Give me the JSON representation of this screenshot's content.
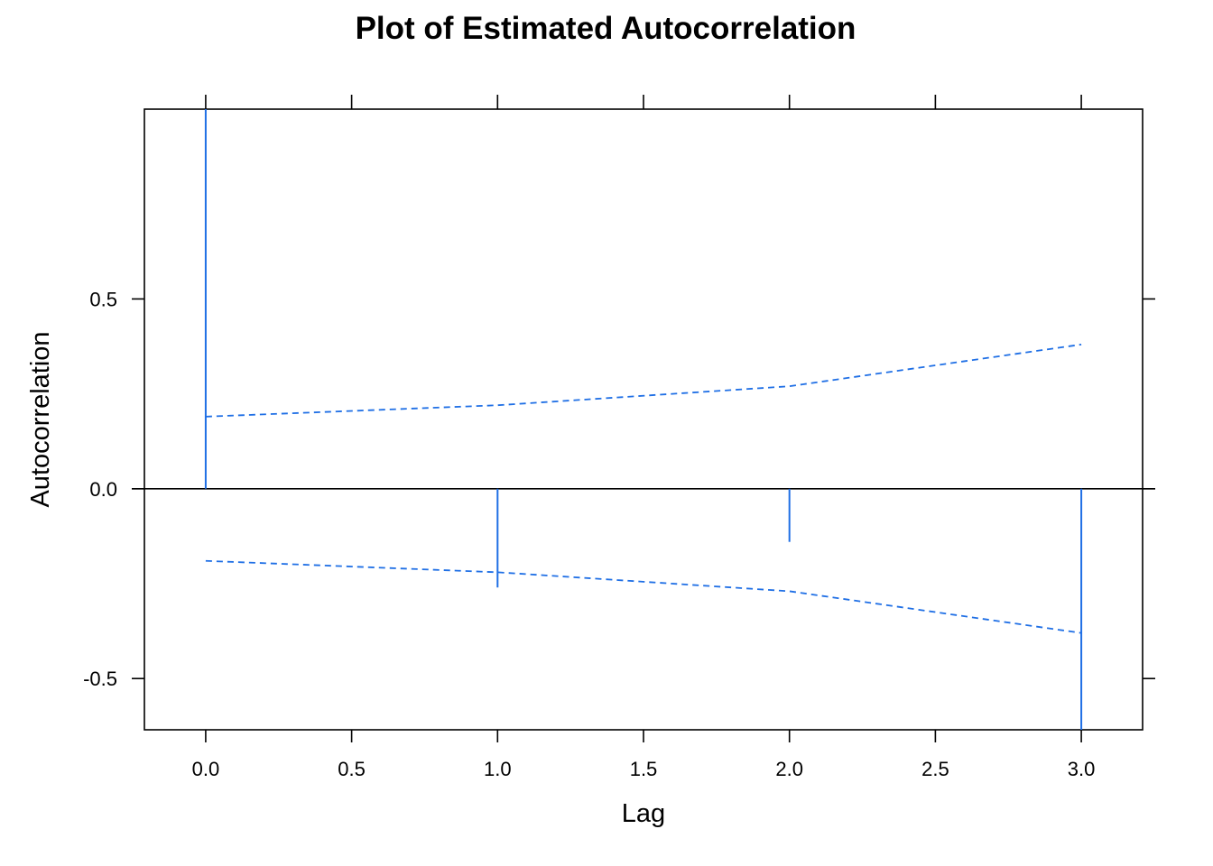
{
  "chart_data": {
    "type": "line",
    "title": "Plot of Estimated Autocorrelation",
    "xlabel": "Lag",
    "ylabel": "Autocorrelation",
    "xlim": [
      -0.21,
      3.21
    ],
    "ylim": [
      -0.635,
      1.0
    ],
    "x_ticks": [
      {
        "value": 0.0,
        "label": "0.0"
      },
      {
        "value": 0.5,
        "label": "0.5"
      },
      {
        "value": 1.0,
        "label": "1.0"
      },
      {
        "value": 1.5,
        "label": "1.5"
      },
      {
        "value": 2.0,
        "label": "2.0"
      },
      {
        "value": 2.5,
        "label": "2.5"
      },
      {
        "value": 3.0,
        "label": "3.0"
      }
    ],
    "y_ticks": [
      {
        "value": -0.5,
        "label": "-0.5"
      },
      {
        "value": 0.0,
        "label": "0.0"
      },
      {
        "value": 0.5,
        "label": "0.5"
      }
    ],
    "lags": [
      0,
      1,
      2,
      3
    ],
    "autocorrelation": [
      1.0,
      -0.26,
      -0.14,
      -0.635
    ],
    "upper_bound": [
      0.19,
      0.22,
      0.27,
      0.38
    ],
    "lower_bound": [
      -0.19,
      -0.22,
      -0.27,
      -0.38
    ],
    "grid": false,
    "colors": {
      "series": "#1f6fe5",
      "axis": "#000000"
    }
  }
}
